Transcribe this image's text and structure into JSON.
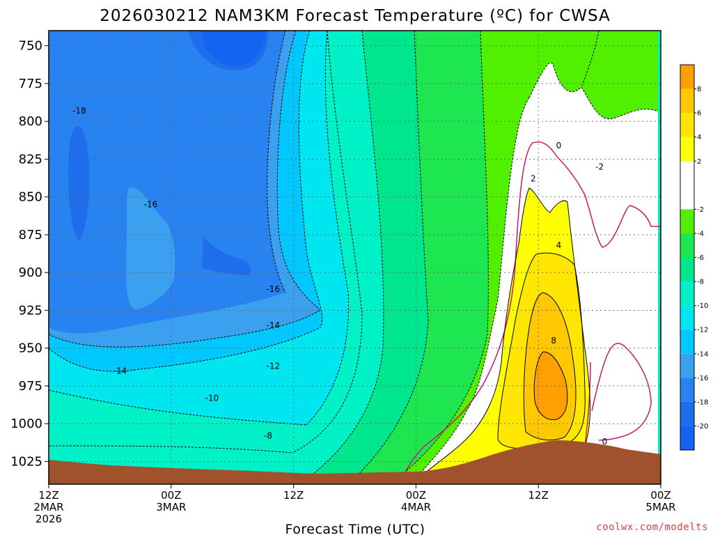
{
  "chart_data": {
    "type": "heatmap",
    "title": "2026030212 NAM3KM Forecast Temperature (ºC) for CWSA",
    "xlabel": "Forecast Time (UTC)",
    "ylabel": "",
    "credit": "coolwx.com/modelts",
    "y_axis": {
      "unit": "hPa",
      "inverted": true,
      "range": [
        740,
        1040
      ],
      "ticks": [
        "750",
        "775",
        "800",
        "825",
        "850",
        "875",
        "900",
        "925",
        "950",
        "975",
        "1000",
        "1025"
      ]
    },
    "x_axis": {
      "unit": "forecast hour",
      "range": [
        0,
        60
      ],
      "ticks": [
        {
          "hour": 0,
          "line1": "12Z",
          "line2": "2MAR",
          "line3": "2026"
        },
        {
          "hour": 12,
          "line1": "00Z",
          "line2": "3MAR",
          "line3": ""
        },
        {
          "hour": 24,
          "line1": "12Z",
          "line2": "",
          "line3": ""
        },
        {
          "hour": 36,
          "line1": "00Z",
          "line2": "4MAR",
          "line3": ""
        },
        {
          "hour": 48,
          "line1": "12Z",
          "line2": "",
          "line3": ""
        },
        {
          "hour": 60,
          "line1": "00Z",
          "line2": "5MAR",
          "line3": ""
        }
      ]
    },
    "grid": true,
    "colorbar": {
      "placement": "right",
      "labels": [
        "8",
        "6",
        "4",
        "2",
        "-2",
        "-4",
        "-6",
        "-8",
        "-10",
        "-12",
        "-14",
        "-16",
        "-18",
        "-20"
      ],
      "bands": [
        {
          "from": -22,
          "to": -20,
          "color": "#1464f4"
        },
        {
          "from": -20,
          "to": -18,
          "color": "#1e6eeb"
        },
        {
          "from": -18,
          "to": -16,
          "color": "#2882f0"
        },
        {
          "from": -16,
          "to": -14,
          "color": "#3ca0f0"
        },
        {
          "from": -14,
          "to": -12,
          "color": "#00c8ff"
        },
        {
          "from": -12,
          "to": -10,
          "color": "#00e6f0"
        },
        {
          "from": -10,
          "to": -8,
          "color": "#00f0c8"
        },
        {
          "from": -8,
          "to": -6,
          "color": "#00e68c"
        },
        {
          "from": -6,
          "to": -4,
          "color": "#1ee650"
        },
        {
          "from": -4,
          "to": -2,
          "color": "#50f000"
        },
        {
          "from": -2,
          "to": 2,
          "color": "#ffffff"
        },
        {
          "from": 2,
          "to": 4,
          "color": "#ffff00"
        },
        {
          "from": 4,
          "to": 6,
          "color": "#ffe600"
        },
        {
          "from": 6,
          "to": 8,
          "color": "#ffc800"
        },
        {
          "from": 8,
          "to": 10,
          "color": "#ffa000"
        }
      ]
    },
    "contour_labels": [
      {
        "text": "-18",
        "hour": 3.0,
        "pressure": 793
      },
      {
        "text": "-16",
        "hour": 10.0,
        "pressure": 855
      },
      {
        "text": "-16",
        "hour": 22.0,
        "pressure": 911
      },
      {
        "text": "-14",
        "hour": 22.0,
        "pressure": 935
      },
      {
        "text": "-14",
        "hour": 7.0,
        "pressure": 965
      },
      {
        "text": "-12",
        "hour": 22.0,
        "pressure": 962
      },
      {
        "text": "-10",
        "hour": 16.0,
        "pressure": 983
      },
      {
        "text": "-8",
        "hour": 21.5,
        "pressure": 1008
      },
      {
        "text": "0",
        "hour": 50.0,
        "pressure": 816
      },
      {
        "text": "-2",
        "hour": 54.0,
        "pressure": 830
      },
      {
        "text": "2",
        "hour": 47.5,
        "pressure": 838
      },
      {
        "text": "4",
        "hour": 50.0,
        "pressure": 882
      },
      {
        "text": "8",
        "hour": 49.5,
        "pressure": 945
      },
      {
        "text": "0",
        "hour": 54.5,
        "pressure": 1012
      }
    ],
    "terrain_color": "#a0522d"
  }
}
